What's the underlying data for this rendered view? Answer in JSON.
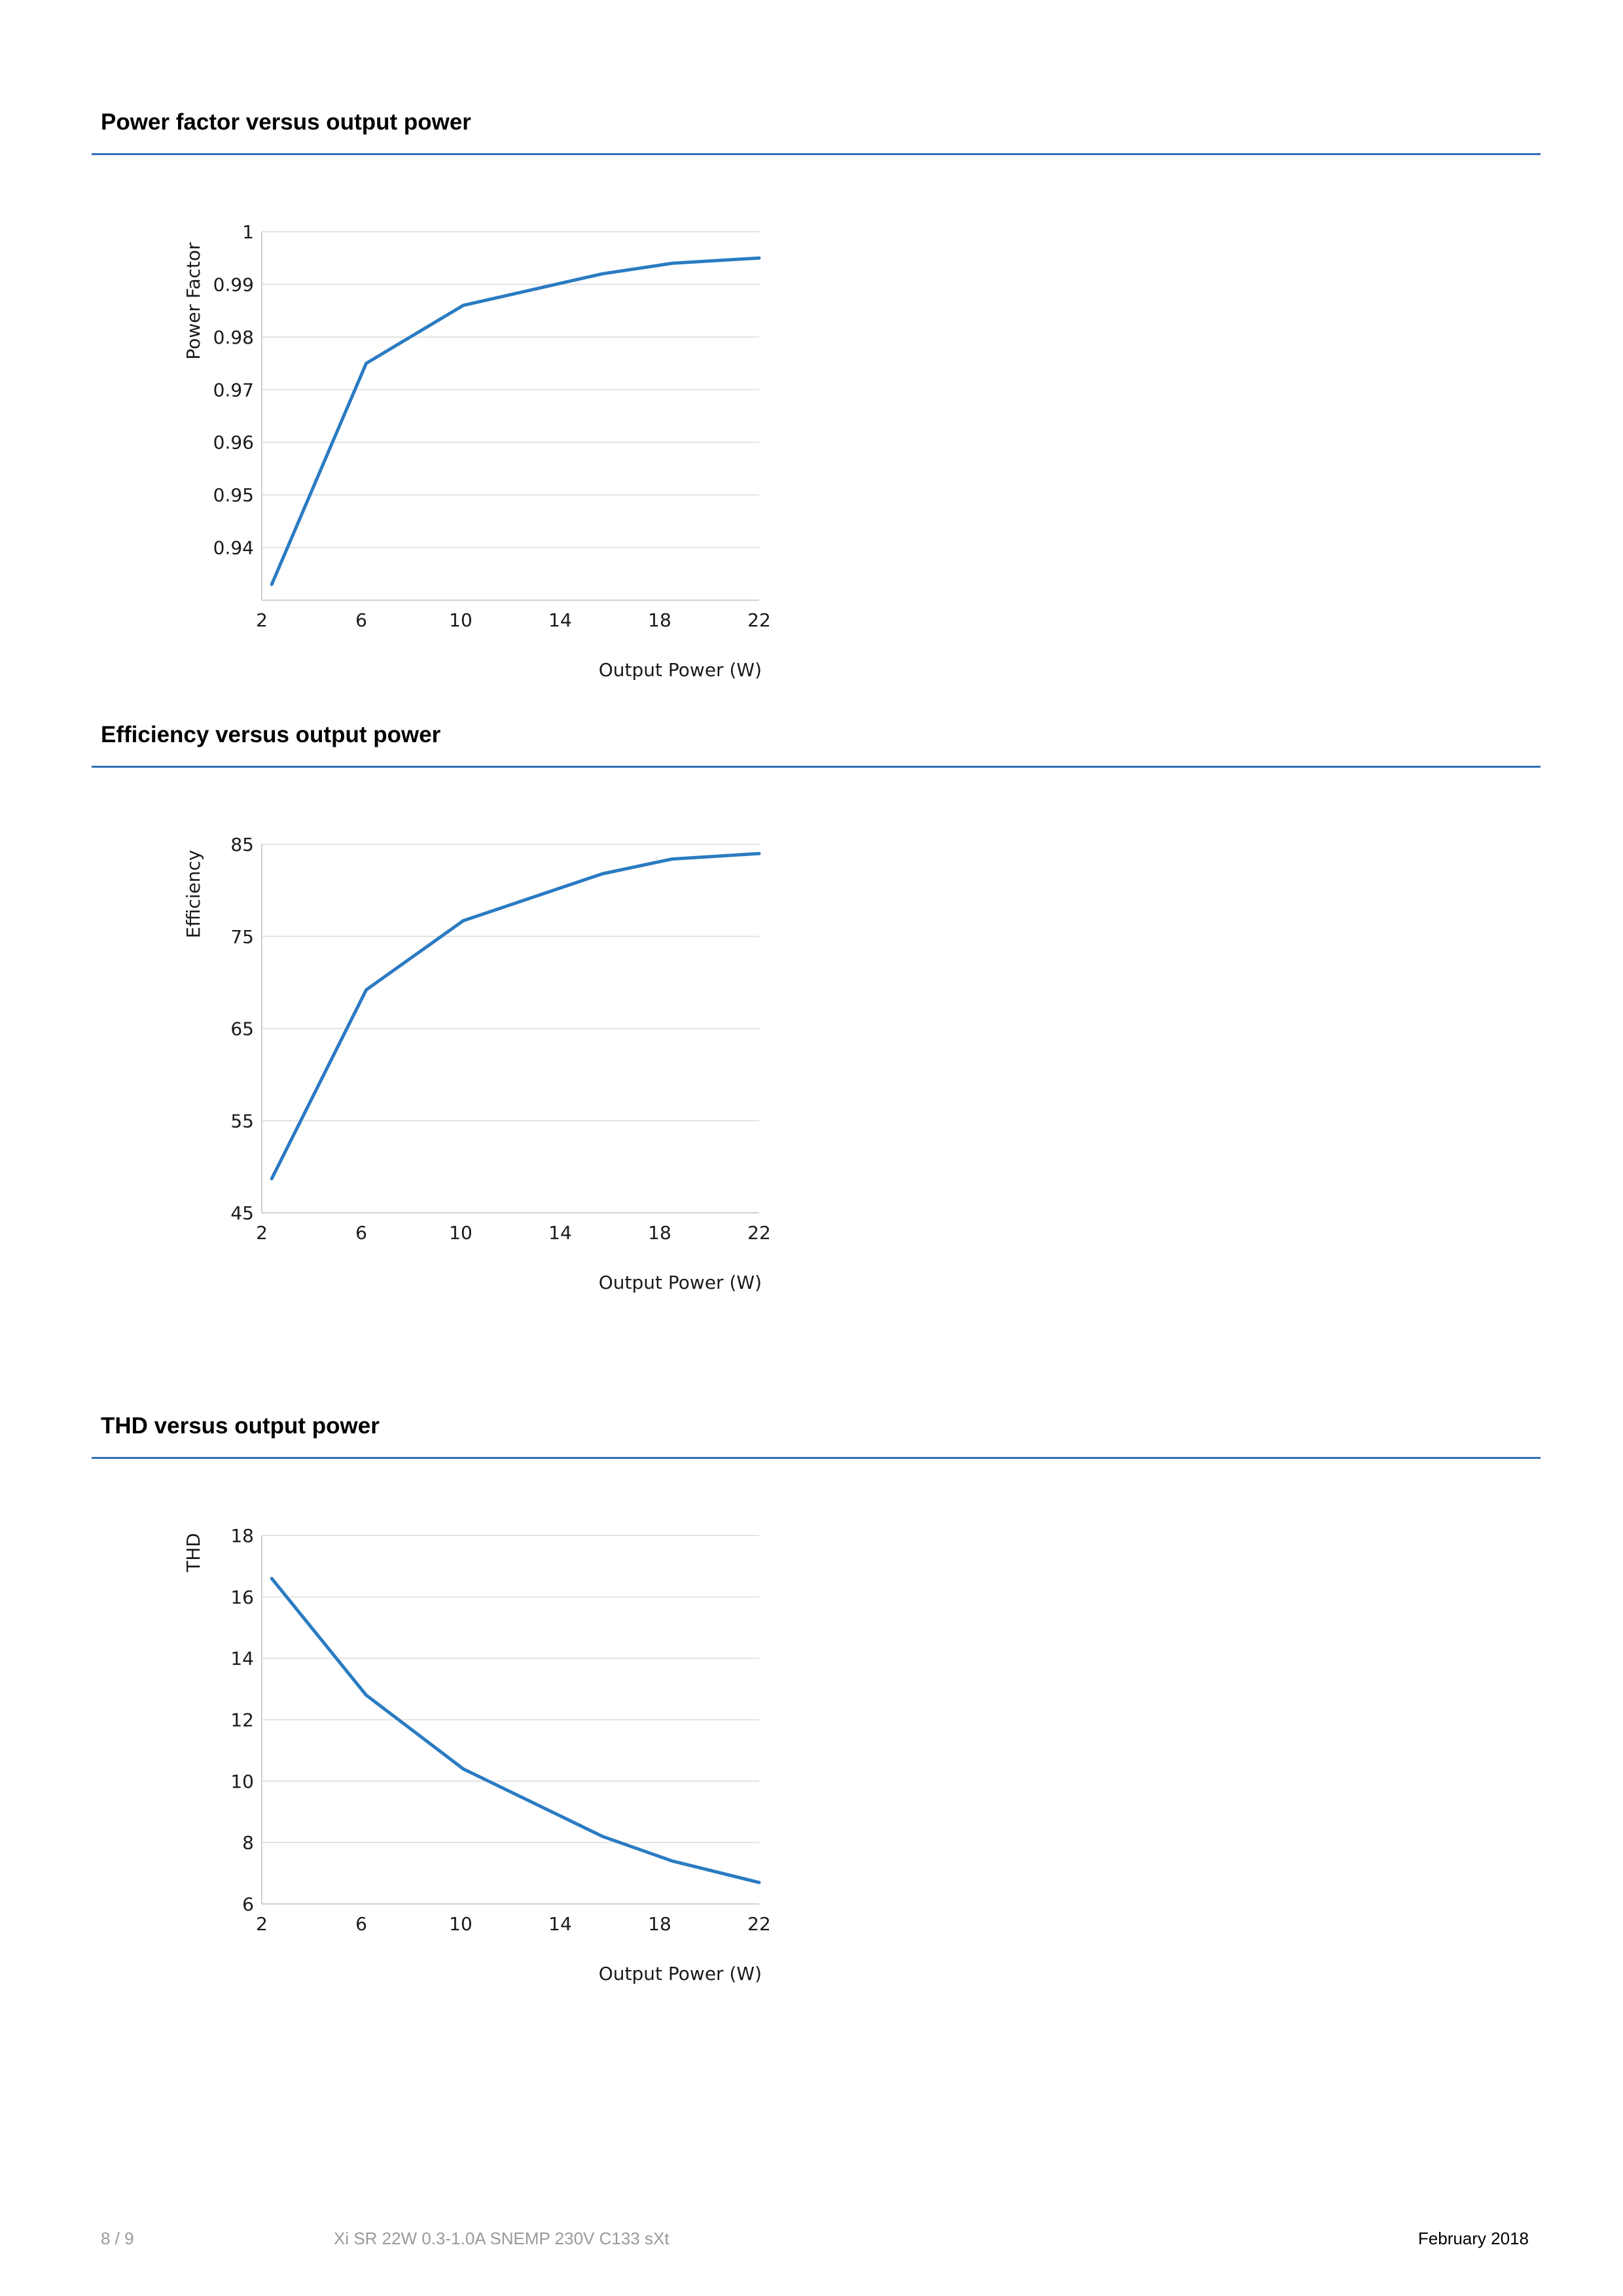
{
  "sections": [
    {
      "title": "Power factor versus output power"
    },
    {
      "title": "Efficiency versus output power"
    },
    {
      "title": "THD versus output power"
    }
  ],
  "footer": {
    "page": "8 / 9",
    "product": "Xi SR 22W 0.3-1.0A SNEMP 230V C133 sXt",
    "date": "February 2018"
  },
  "colors": {
    "line": "#2a7bc2",
    "rule": "#2f6fb7",
    "grid": "#e3e3e3"
  },
  "chart_data": [
    {
      "type": "line",
      "title": "Power factor versus output power",
      "xlabel": "Output Power (W)",
      "ylabel": "Power Factor",
      "xlim": [
        2,
        22
      ],
      "ylim": [
        0.93,
        1
      ],
      "x_ticks": [
        "2",
        "6",
        "10",
        "14",
        "18",
        "22"
      ],
      "y_ticks": [
        "1",
        "0.99",
        "0.98",
        "0.97",
        "0.96",
        "0.95",
        "0.94"
      ],
      "y_tick_values": [
        1,
        0.99,
        0.98,
        0.97,
        0.96,
        0.95,
        0.94
      ],
      "grid": true,
      "series": [
        {
          "x": [
            2.4,
            6.2,
            10.1,
            15.7,
            18.5,
            22
          ],
          "values": [
            0.933,
            0.975,
            0.986,
            0.992,
            0.994,
            0.995
          ]
        }
      ]
    },
    {
      "type": "line",
      "title": "Efficiency versus output power",
      "xlabel": "Output Power (W)",
      "ylabel": "Efficiency",
      "xlim": [
        2,
        22
      ],
      "ylim": [
        45,
        85
      ],
      "x_ticks": [
        "2",
        "6",
        "10",
        "14",
        "18",
        "22"
      ],
      "y_ticks": [
        "85",
        "75",
        "65",
        "55",
        "45"
      ],
      "y_tick_values": [
        85,
        75,
        65,
        55,
        45
      ],
      "grid": true,
      "series": [
        {
          "x": [
            2.4,
            6.2,
            10.1,
            15.7,
            18.5,
            22
          ],
          "values": [
            48.7,
            69.2,
            76.7,
            81.8,
            83.4,
            84
          ]
        }
      ]
    },
    {
      "type": "line",
      "title": "THD versus output power",
      "xlabel": "Output Power (W)",
      "ylabel": "THD",
      "xlim": [
        2,
        22
      ],
      "ylim": [
        6,
        18
      ],
      "x_ticks": [
        "2",
        "6",
        "10",
        "14",
        "18",
        "22"
      ],
      "y_ticks": [
        "18",
        "16",
        "14",
        "12",
        "10",
        "8",
        "6"
      ],
      "y_tick_values": [
        18,
        16,
        14,
        12,
        10,
        8,
        6
      ],
      "grid": true,
      "series": [
        {
          "x": [
            2.4,
            6.2,
            10.1,
            15.7,
            18.5,
            22
          ],
          "values": [
            16.6,
            12.8,
            10.4,
            8.2,
            7.4,
            6.7
          ]
        }
      ]
    }
  ]
}
